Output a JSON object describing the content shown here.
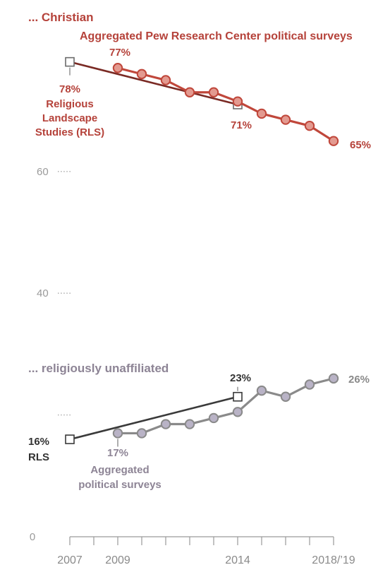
{
  "chart_data": {
    "type": "line",
    "x_axis": {
      "ticks": [
        2007,
        2008,
        2009,
        2010,
        2011,
        2012,
        2013,
        2014,
        2015,
        2016,
        2017,
        2018
      ],
      "labels": [
        {
          "x": 2007,
          "text": "2007"
        },
        {
          "x": 2009,
          "text": "2009"
        },
        {
          "x": 2014,
          "text": "2014"
        },
        {
          "x": 2018,
          "text": "2018/’19"
        }
      ]
    },
    "y_axis": {
      "range": [
        0,
        78
      ],
      "ticks": [
        {
          "value": 60,
          "text": "60"
        },
        {
          "value": 40,
          "text": "40"
        },
        {
          "value": 0,
          "text": "0"
        }
      ],
      "dotted_levels": [
        60,
        40,
        20
      ]
    },
    "groups": [
      {
        "title": "... Christian",
        "color": "#c0473b",
        "series": [
          {
            "name": "Religious Landscape Studies (RLS)",
            "marker": "square",
            "x": [
              2007,
              2014
            ],
            "y": [
              78,
              71
            ]
          },
          {
            "name": "Aggregated Pew Research Center political surveys",
            "marker": "circle",
            "x": [
              2009,
              2010,
              2011,
              2012,
              2013,
              2014,
              2015,
              2016,
              2017,
              2018
            ],
            "y": [
              77,
              76,
              75,
              73,
              73,
              71.5,
              69.5,
              68.5,
              67.5,
              65
            ]
          }
        ],
        "labels": {
          "rls_start": "78%",
          "rls_name": [
            "Religious",
            "Landscape",
            "Studies (RLS)"
          ],
          "rls_end": "71%",
          "surveys_name": "Aggregated Pew Research Center political surveys",
          "surveys_start": "77%",
          "surveys_end": "65%"
        }
      },
      {
        "title": "... religiously unaffiliated",
        "color": "#8a8a8a",
        "series": [
          {
            "name": "RLS",
            "marker": "square",
            "x": [
              2007,
              2014
            ],
            "y": [
              16,
              23
            ]
          },
          {
            "name": "Aggregated political surveys",
            "marker": "circle",
            "x": [
              2009,
              2010,
              2011,
              2012,
              2013,
              2014,
              2015,
              2016,
              2017,
              2018
            ],
            "y": [
              17,
              17,
              18.5,
              18.5,
              19.5,
              20.5,
              24,
              23,
              25,
              26
            ]
          }
        ],
        "labels": {
          "rls_start": "16%",
          "rls_name": [
            "RLS"
          ],
          "rls_end": "23%",
          "surveys_name": [
            "Aggregated",
            "political surveys"
          ],
          "surveys_start": "17%",
          "surveys_end": "26%"
        }
      }
    ],
    "colors": {
      "christian_line": "#c0473b",
      "christian_fill": "#e39a90",
      "christian_text": "#b5423a",
      "unaffiliated_line": "#8a8a8a",
      "unaffiliated_fill": "#b9b3c6",
      "unaffiliated_text": "#8d8495",
      "rls_line": "#3a3a3a",
      "dark_text": "#333333"
    }
  }
}
